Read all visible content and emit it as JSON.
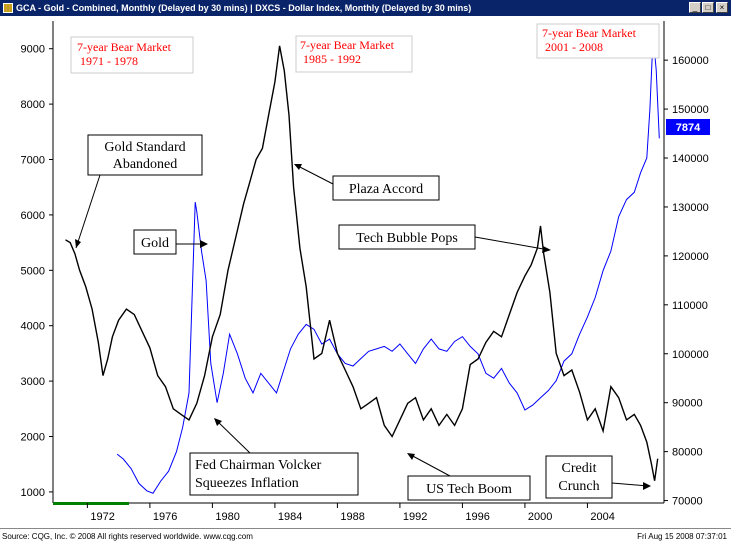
{
  "window": {
    "title": "GCA - Gold - Combined, Monthly (Delayed by 30 mins)   |   DXCS - Dollar Index, Monthly (Delayed by 30 mins)",
    "icon": "chart-window-icon"
  },
  "footer": {
    "source": "Source: CQG, Inc. © 2008 All rights reserved worldwide. www.cqg.com",
    "timestamp": "Fri Aug 15 2008 07:37:01"
  },
  "colors": {
    "gold_line": "#000000",
    "dollar_line": "#0000ff",
    "highlight_box": "#0000ff",
    "red_text": "#ff0000",
    "timeline_bar": "#008000"
  },
  "chart_data": {
    "type": "line",
    "x_range": [
      1969.8,
      2008.9
    ],
    "x_ticks": [
      "1972",
      "1976",
      "1980",
      "1984",
      "1988",
      "1992",
      "1996",
      "2000",
      "2004"
    ],
    "x_tick_values": [
      1972,
      1976,
      1980,
      1984,
      1988,
      1992,
      1996,
      2000,
      2004
    ],
    "left_axis": {
      "ticks": [
        "1000",
        "2000",
        "3000",
        "4000",
        "5000",
        "6000",
        "7000",
        "8000",
        "9000"
      ],
      "range": [
        800,
        9500
      ]
    },
    "right_axis": {
      "ticks": [
        "70000",
        "80000",
        "90000",
        "100000",
        "110000",
        "120000",
        "130000",
        "140000",
        "150000",
        "160000"
      ],
      "range": [
        69500,
        168000
      ]
    },
    "current_value_label": "7874",
    "series": [
      {
        "axis": "left",
        "x": [
          1970.6,
          1970.9,
          1971.2,
          1971.5,
          1971.9,
          1972.3,
          1972.7,
          1973.0,
          1973.3,
          1973.6,
          1974.0,
          1974.5,
          1975.0,
          1975.5,
          1976.0,
          1976.5,
          1977.0,
          1977.5,
          1978.0,
          1978.5,
          1979.0,
          1979.5,
          1980.0,
          1980.5,
          1981.0,
          1981.5,
          1982.0,
          1982.4,
          1982.8,
          1983.2,
          1983.6,
          1984.0,
          1984.3,
          1984.6,
          1984.9,
          1985.2,
          1985.6,
          1986.0,
          1986.5,
          1987.0,
          1987.5,
          1988.0,
          1988.5,
          1989.0,
          1989.5,
          1990.0,
          1990.5,
          1991.0,
          1991.5,
          1992.0,
          1992.5,
          1993.0,
          1993.5,
          1994.0,
          1994.5,
          1995.0,
          1995.5,
          1996.0,
          1996.5,
          1997.0,
          1997.5,
          1998.0,
          1998.5,
          1999.0,
          1999.5,
          2000.0,
          2000.4,
          2000.8,
          2001.0,
          2001.2,
          2001.6,
          2002.0,
          2002.5,
          2003.0,
          2003.5,
          2004.0,
          2004.5,
          2005.0,
          2005.5,
          2006.0,
          2006.5,
          2007.0,
          2007.4,
          2007.8,
          2008.1,
          2008.3,
          2008.5
        ],
        "values": [
          5550,
          5500,
          5300,
          5000,
          4700,
          4300,
          3700,
          3100,
          3400,
          3800,
          4100,
          4300,
          4200,
          3900,
          3600,
          3100,
          2900,
          2500,
          2400,
          2300,
          2600,
          3100,
          3800,
          4200,
          5000,
          5600,
          6200,
          6600,
          7000,
          7200,
          7800,
          8400,
          9050,
          8600,
          7800,
          6500,
          5400,
          4700,
          3400,
          3500,
          4100,
          3500,
          3200,
          2900,
          2500,
          2600,
          2700,
          2200,
          2000,
          2300,
          2600,
          2700,
          2300,
          2500,
          2200,
          2400,
          2200,
          2500,
          3300,
          3400,
          3700,
          3900,
          3800,
          4200,
          4600,
          4900,
          5100,
          5400,
          5800,
          5300,
          4600,
          3500,
          3100,
          3200,
          2800,
          2300,
          2500,
          2100,
          2900,
          2700,
          2300,
          2400,
          2200,
          1900,
          1500,
          1200,
          1600
        ]
      },
      {
        "axis": "right",
        "x": [
          1973.9,
          1974.3,
          1974.8,
          1975.3,
          1975.8,
          1976.2,
          1976.7,
          1977.2,
          1977.7,
          1978.1,
          1978.5,
          1978.9,
          1979.0,
          1979.3,
          1979.6,
          1979.9,
          1980.3,
          1980.7,
          1981.1,
          1981.6,
          1982.1,
          1982.6,
          1983.1,
          1983.6,
          1984.1,
          1984.6,
          1985.0,
          1985.5,
          1986.0,
          1986.5,
          1987.0,
          1987.5,
          1988.0,
          1988.5,
          1989.0,
          1989.5,
          1990.0,
          1990.5,
          1991.0,
          1991.5,
          1992.0,
          1992.5,
          1993.0,
          1993.5,
          1994.0,
          1994.5,
          1995.0,
          1995.5,
          1996.0,
          1996.5,
          1997.0,
          1997.5,
          1998.0,
          1998.5,
          1999.0,
          1999.5,
          2000.0,
          2000.5,
          2001.0,
          2001.5,
          2002.0,
          2002.5,
          2003.0,
          2003.5,
          2004.0,
          2004.5,
          2005.0,
          2005.5,
          2006.0,
          2006.5,
          2007.0,
          2007.4,
          2007.8,
          2008.0,
          2008.2,
          2008.4,
          2008.6
        ],
        "values": [
          79500,
          78500,
          76500,
          73500,
          72000,
          71500,
          74000,
          76000,
          80000,
          85000,
          92000,
          131000,
          129000,
          121000,
          115000,
          98000,
          90000,
          96000,
          104000,
          100000,
          95000,
          92000,
          96000,
          94000,
          92000,
          97000,
          101000,
          104000,
          106000,
          105000,
          102000,
          103000,
          100000,
          98000,
          97500,
          99000,
          100500,
          101000,
          101500,
          100500,
          102000,
          100000,
          98000,
          101000,
          103000,
          101000,
          100500,
          102500,
          103500,
          101500,
          100000,
          96000,
          95000,
          97000,
          94000,
          92000,
          88500,
          89500,
          91000,
          92500,
          94500,
          98500,
          100000,
          104000,
          107500,
          111500,
          117000,
          121000,
          128000,
          131500,
          133000,
          137000,
          140000,
          150000,
          165000,
          158000,
          144000
        ]
      }
    ],
    "annotations": [
      "7-year Bear Market\n 1971 - 1978",
      "7-year Bear Market\n  1985 - 1992",
      "7-year Bear Market\n  2001 - 2008",
      "Gold Standard\nAbandoned",
      "Gold",
      "Plaza Accord",
      "Tech Bubble Pops",
      "Fed Chairman Volcker\nSqueezes Inflation",
      "US Tech Boom",
      "Credit\nCrunch"
    ]
  }
}
